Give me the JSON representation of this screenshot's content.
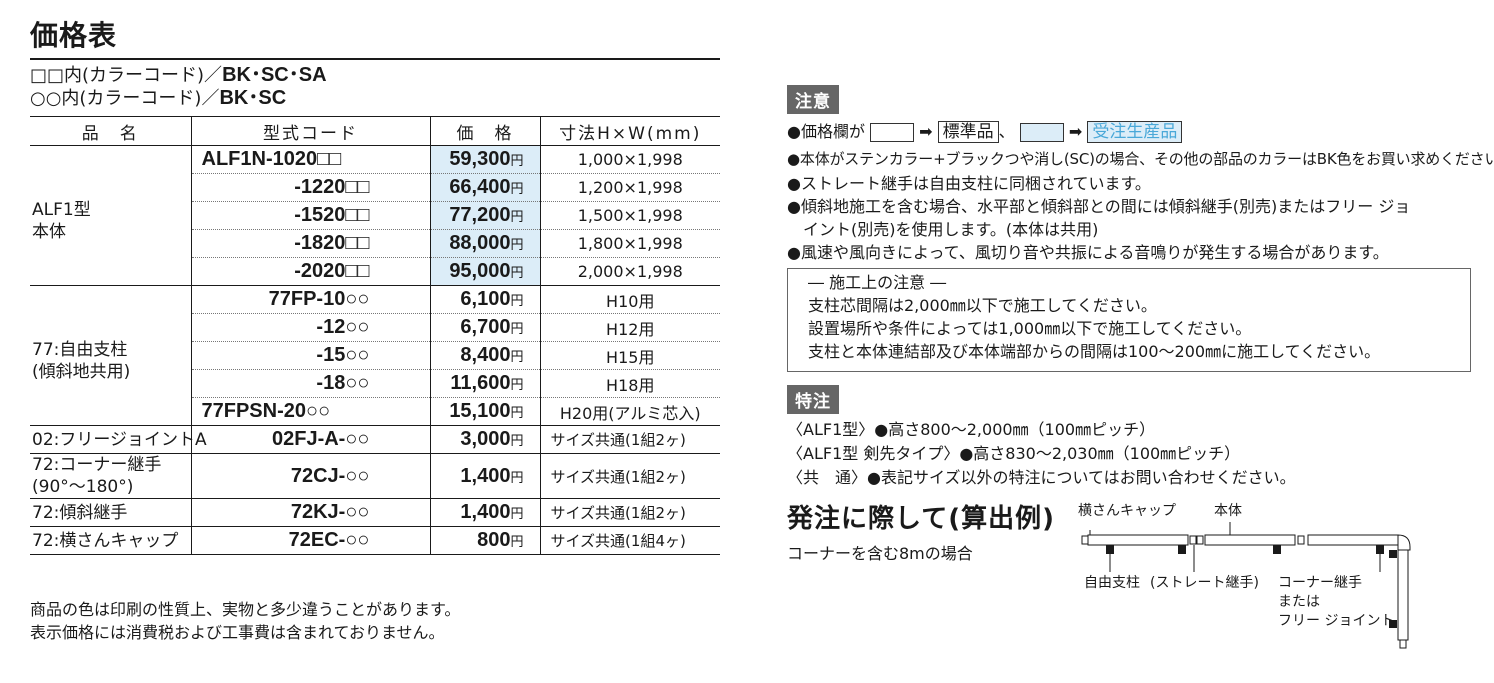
{
  "title": "価格表",
  "color_codes": [
    {
      "prefix": "□□内(カラーコード)／",
      "codes": "BK･SC･SA"
    },
    {
      "prefix": "○○内(カラーコード)／",
      "codes": "BK･SC"
    }
  ],
  "table": {
    "headers": [
      "品　名",
      "型式コード",
      "価　格",
      "寸法H×W(mm)"
    ],
    "yen": "円",
    "groups": [
      {
        "name": "ALF1型\n本体",
        "rows": [
          {
            "code": "ALF1N-1020□□",
            "price": "59,300",
            "size": "1,000×1,998"
          },
          {
            "code": "-1220□□",
            "price": "66,400",
            "size": "1,200×1,998"
          },
          {
            "code": "-1520□□",
            "price": "77,200",
            "size": "1,500×1,998"
          },
          {
            "code": "-1820□□",
            "price": "88,000",
            "size": "1,800×1,998"
          },
          {
            "code": "-2020□□",
            "price": "95,000",
            "size": "2,000×1,998"
          }
        ]
      },
      {
        "name": "77:自由支柱\n(傾斜地共用)",
        "rows": [
          {
            "code": "77FP-10○○",
            "price": "6,100",
            "size": "H10用"
          },
          {
            "code": "-12○○",
            "price": "6,700",
            "size": "H12用"
          },
          {
            "code": "-15○○",
            "price": "8,400",
            "size": "H15用"
          },
          {
            "code": "-18○○",
            "price": "11,600",
            "size": "H18用"
          },
          {
            "code": "77FPSN-20○○",
            "price": "15,100",
            "size": "H20用(アルミ芯入)"
          }
        ]
      },
      {
        "name": "02:フリージョイントA",
        "rows": [
          {
            "code": "02FJ-A-○○",
            "price": "3,000",
            "size": "サイズ共通(1組2ヶ)"
          }
        ]
      },
      {
        "name": "72:コーナー継手\n(90°～180°)",
        "rows": [
          {
            "code": "72CJ-○○",
            "price": "1,400",
            "size": "サイズ共通(1組2ヶ)"
          }
        ]
      },
      {
        "name": "72:傾斜継手",
        "rows": [
          {
            "code": "72KJ-○○",
            "price": "1,400",
            "size": "サイズ共通(1組2ヶ)"
          }
        ]
      },
      {
        "name": "72:横さんキャップ",
        "rows": [
          {
            "code": "72EC-○○",
            "price": "800",
            "size": "サイズ共通(1組4ヶ)"
          }
        ]
      }
    ]
  },
  "bottom_notes": [
    "商品の色は印刷の性質上、実物と多少違うことがあります。",
    "表示価格には消費税および工事費は含まれておりません。"
  ],
  "caution": {
    "tag": "注意",
    "legend_prefix": "●価格欄が",
    "arrow": "➡",
    "standard": "標準品",
    "sep": "、",
    "order": "受注生産品",
    "lines": [
      "●本体がステンカラー+ブラックつや消し(SC)の場合、その他の部品のカラーはBK色をお買い求めください。",
      "●ストレート継手は自由支柱に同梱されています。",
      "●傾斜地施工を含む場合、水平部と傾斜部との間には傾斜継手(別売)またはフリー ジョ",
      "　イント(別売)を使用します。(本体は共用)",
      "●風速や風向きによって、風切り音や共振による音鳴りが発生する場合があります。"
    ]
  },
  "construction": {
    "heading": "― 施工上の注意 ―",
    "lines": [
      "支柱芯間隔は2,000㎜以下で施工してください。",
      "設置場所や条件によっては1,000㎜以下で施工してください。",
      "支柱と本体連結部及び本体端部からの間隔は100～200㎜に施工してください。"
    ]
  },
  "special": {
    "tag": "特注",
    "lines": [
      "〈ALF1型〉●高さ800～2,000㎜（100㎜ピッチ）",
      "〈ALF1型 剣先タイプ〉●高さ830～2,030㎜（100㎜ピッチ）",
      "〈共　通〉●表記サイズ以外の特注についてはお問い合わせください。"
    ]
  },
  "example": {
    "heading": "発注に際して(算出例)",
    "sub": "コーナーを含む8mの場合",
    "labels": {
      "cap": "横さんキャップ",
      "body": "本体",
      "post": "自由支柱",
      "straight": "(ストレート継手)",
      "corner1": "コーナー継手",
      "corner2": "または",
      "corner3": "フリー ジョイント"
    }
  }
}
